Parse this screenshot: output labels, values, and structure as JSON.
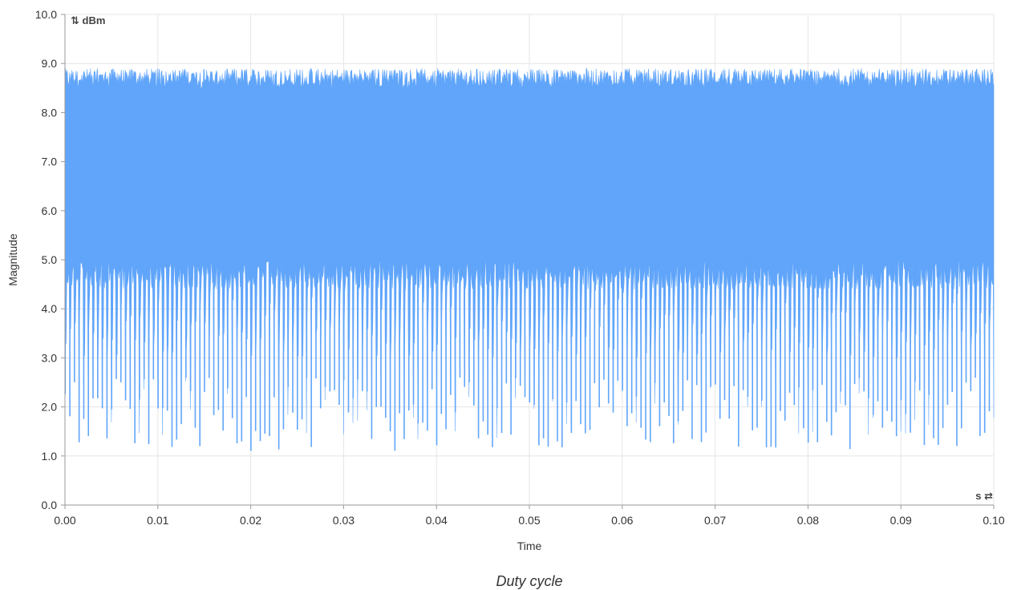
{
  "chart_data": {
    "type": "area",
    "title": "Duty cycle",
    "xlabel": "Time",
    "ylabel": "Magnitude",
    "x_unit": "s",
    "y_unit": "dBm",
    "x_unit_glyph": "⇄",
    "y_unit_glyph": "⇅",
    "xlim": [
      0.0,
      0.1
    ],
    "ylim": [
      0.0,
      10.0
    ],
    "x_ticks": [
      "0.00",
      "0.01",
      "0.02",
      "0.03",
      "0.04",
      "0.05",
      "0.06",
      "0.07",
      "0.08",
      "0.09",
      "0.10"
    ],
    "y_ticks": [
      "0.0",
      "1.0",
      "2.0",
      "3.0",
      "4.0",
      "5.0",
      "6.0",
      "7.0",
      "8.0",
      "9.0",
      "10.0"
    ],
    "grid": true,
    "legend": "none",
    "series_color": "#60a5fa",
    "series": [
      {
        "x_start": 0.0,
        "x_end": 0.1,
        "approx_cycles": 200,
        "upper_envelope_range": [
          8.5,
          8.9
        ],
        "dense_band": [
          5.0,
          8.7
        ],
        "lower_spike_range": [
          1.1,
          2.6
        ]
      }
    ]
  }
}
